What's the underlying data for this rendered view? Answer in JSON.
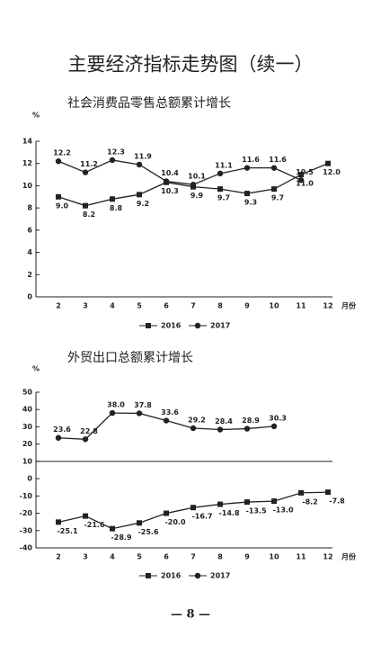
{
  "header": {
    "title": "主要经济指标走势图（续一）"
  },
  "chart_data": [
    {
      "type": "line",
      "title": "社会消费品零售总额累计增长",
      "y_label": "%",
      "x_label": "月份",
      "categories": [
        "2",
        "3",
        "4",
        "5",
        "6",
        "7",
        "8",
        "9",
        "10",
        "11",
        "12"
      ],
      "ylim": [
        0,
        14
      ],
      "yticks": [
        0,
        2,
        4,
        6,
        8,
        10,
        12,
        14
      ],
      "series": [
        {
          "name": "2016",
          "color": "#222",
          "marker": "square",
          "values": [
            9.0,
            8.2,
            8.8,
            9.2,
            10.3,
            9.9,
            9.7,
            9.3,
            9.7,
            11.0,
            12.0
          ],
          "value_labels": [
            "9.0",
            "8.2",
            "8.8",
            "9.2",
            "10.3",
            "9.9",
            "9.7",
            "9.3",
            "9.7",
            "11.0",
            "12.0"
          ]
        },
        {
          "name": "2017",
          "color": "#222",
          "marker": "circle",
          "values": [
            12.2,
            11.2,
            12.3,
            11.9,
            10.4,
            10.1,
            11.1,
            11.6,
            11.6,
            10.5,
            null
          ],
          "value_labels": [
            "12.2",
            "11.2",
            "12.3",
            "11.9",
            "10.4",
            "10.1",
            "11.1",
            "11.6",
            "11.6",
            "10.5",
            null
          ]
        }
      ]
    },
    {
      "type": "line",
      "title": "外贸出口总额累计增长",
      "y_label": "%",
      "x_label": "月份",
      "categories": [
        "2",
        "3",
        "4",
        "5",
        "6",
        "7",
        "8",
        "9",
        "10",
        "11",
        "12"
      ],
      "ylim": [
        -40,
        50
      ],
      "yticks": [
        -40,
        -30,
        -20,
        -10,
        0,
        10,
        20,
        30,
        40,
        50
      ],
      "series": [
        {
          "name": "2016",
          "color": "#222",
          "marker": "square",
          "values": [
            -25.1,
            -21.6,
            -28.9,
            -25.6,
            -20.0,
            -16.7,
            -14.8,
            -13.5,
            -13.0,
            -8.2,
            -7.8
          ],
          "value_labels": [
            "-25.1",
            "-21.6",
            "-28.9",
            "-25.6",
            "-20.0",
            "-16.7",
            "-14.8",
            "-13.5",
            "-13.0",
            "-8.2",
            "-7.8"
          ]
        },
        {
          "name": "2017",
          "color": "#222",
          "marker": "circle",
          "values": [
            23.6,
            22.8,
            38.0,
            37.8,
            33.6,
            29.2,
            28.4,
            28.9,
            30.3,
            null,
            null
          ],
          "value_labels": [
            "23.6",
            "22.8",
            "38.0",
            "37.8",
            "33.6",
            "29.2",
            "28.4",
            "28.9",
            "30.3",
            null,
            null
          ]
        }
      ]
    }
  ],
  "footer": {
    "page_number": "— 8 —"
  }
}
